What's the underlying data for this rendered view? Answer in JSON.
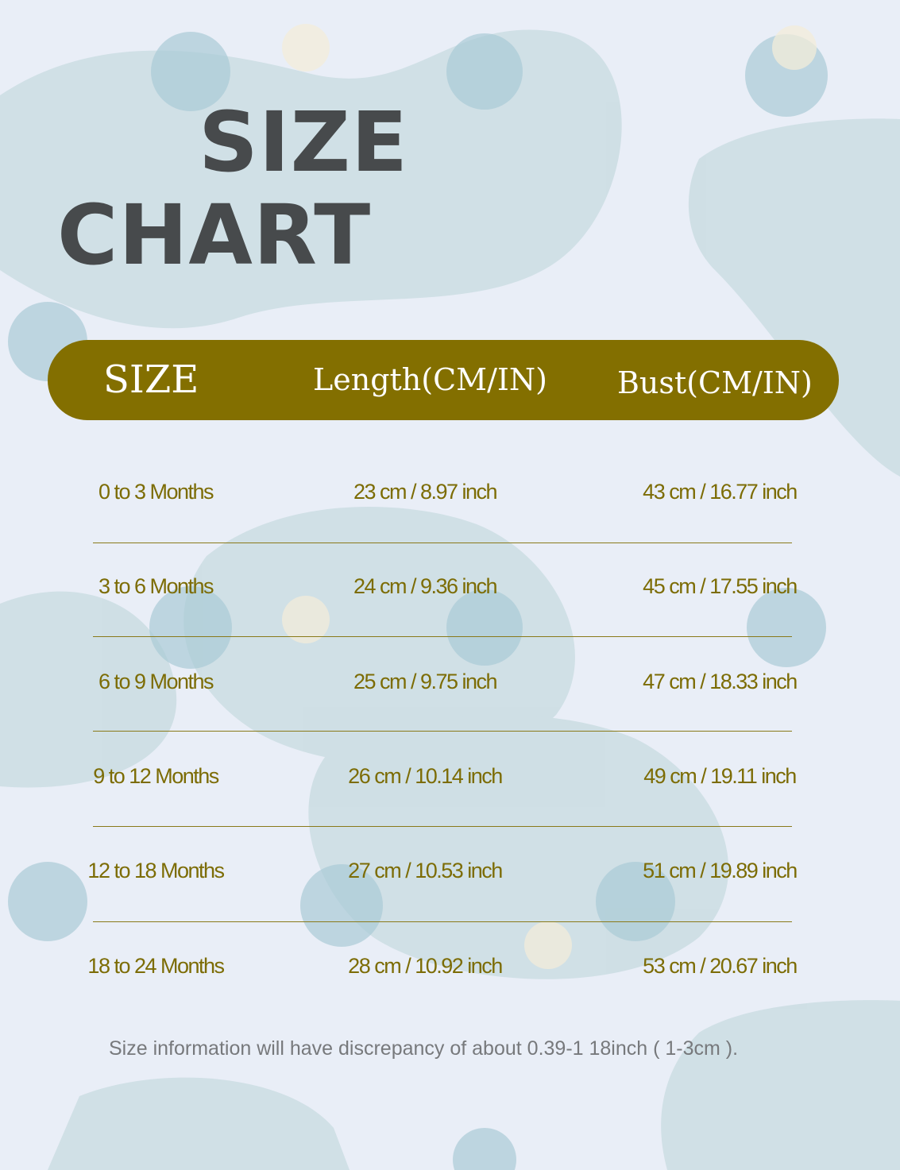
{
  "title": {
    "line1": "SIZE",
    "line2": "CHART"
  },
  "colors": {
    "header_bg": "#836f00",
    "text": "#7c6c05",
    "title": "#474a4c",
    "background": "#e9eef7"
  },
  "table": {
    "headers": [
      "SIZE",
      "Length(CM/IN)",
      "Bust(CM/IN)"
    ],
    "rows": [
      [
        "0 to 3 Months",
        "23 cm / 8.97 inch",
        "43 cm / 16.77 inch"
      ],
      [
        "3 to 6 Months",
        "24 cm / 9.36 inch",
        "45 cm / 17.55 inch"
      ],
      [
        "6 to 9 Months",
        "25 cm / 9.75 inch",
        "47 cm / 18.33 inch"
      ],
      [
        "9 to 12 Months",
        "26 cm / 10.14 inch",
        "49 cm / 19.11 inch"
      ],
      [
        "12 to 18 Months",
        "27 cm / 10.53 inch",
        "51 cm / 19.89 inch"
      ],
      [
        "18 to 24 Months",
        "28 cm / 10.92 inch",
        "53 cm / 20.67 inch"
      ]
    ]
  },
  "note": "Size information will have discrepancy of about 0.39-1 18inch ( 1-3cm )."
}
